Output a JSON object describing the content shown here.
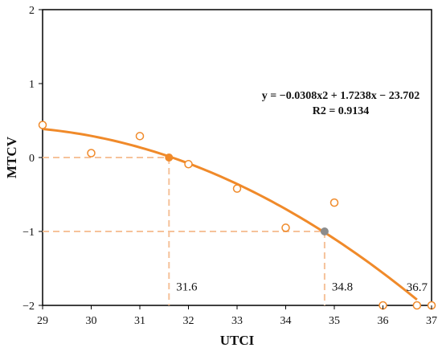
{
  "chart_data": {
    "type": "scatter",
    "xlabel": "UTCI",
    "ylabel": "MTCV",
    "xlim": [
      29,
      37
    ],
    "ylim": [
      -2,
      2
    ],
    "x_ticks": [
      "29",
      "30",
      "31",
      "32",
      "33",
      "34",
      "35",
      "36",
      "37"
    ],
    "y_ticks": [
      "2",
      "1",
      "0",
      "−1",
      "−2"
    ],
    "grid": false,
    "points": [
      {
        "x": 29.0,
        "y": 0.44
      },
      {
        "x": 30.0,
        "y": 0.06
      },
      {
        "x": 31.0,
        "y": 0.29
      },
      {
        "x": 32.0,
        "y": -0.09
      },
      {
        "x": 33.0,
        "y": -0.42
      },
      {
        "x": 34.0,
        "y": -0.95
      },
      {
        "x": 35.0,
        "y": -0.61
      },
      {
        "x": 36.0,
        "y": -2.0
      },
      {
        "x": 36.7,
        "y": -2.0
      },
      {
        "x": 37.0,
        "y": -2.0
      }
    ],
    "fit": {
      "type": "polynomial",
      "coefficients": {
        "a": -0.0308,
        "b": 1.7238,
        "c": -23.702
      },
      "x_range": [
        29,
        36.7
      ],
      "equation_text": "y = −0.0308x2 + 1.7238x − 23.702",
      "r2_text": "R2 = 0.9134"
    },
    "highlights": [
      {
        "x": 31.6,
        "y": 0,
        "label": "31.6",
        "color": "#f08a2a"
      },
      {
        "x": 34.8,
        "y": -1,
        "label": "34.8",
        "color": "#8c8c8c"
      },
      {
        "x": 36.7,
        "y": -2,
        "label": "36.7",
        "color": "#f08a2a"
      }
    ],
    "colors": {
      "line": "#f08a2a",
      "marker": "#f08a2a",
      "guide": "#f6c29a",
      "axis": "#000000"
    }
  }
}
